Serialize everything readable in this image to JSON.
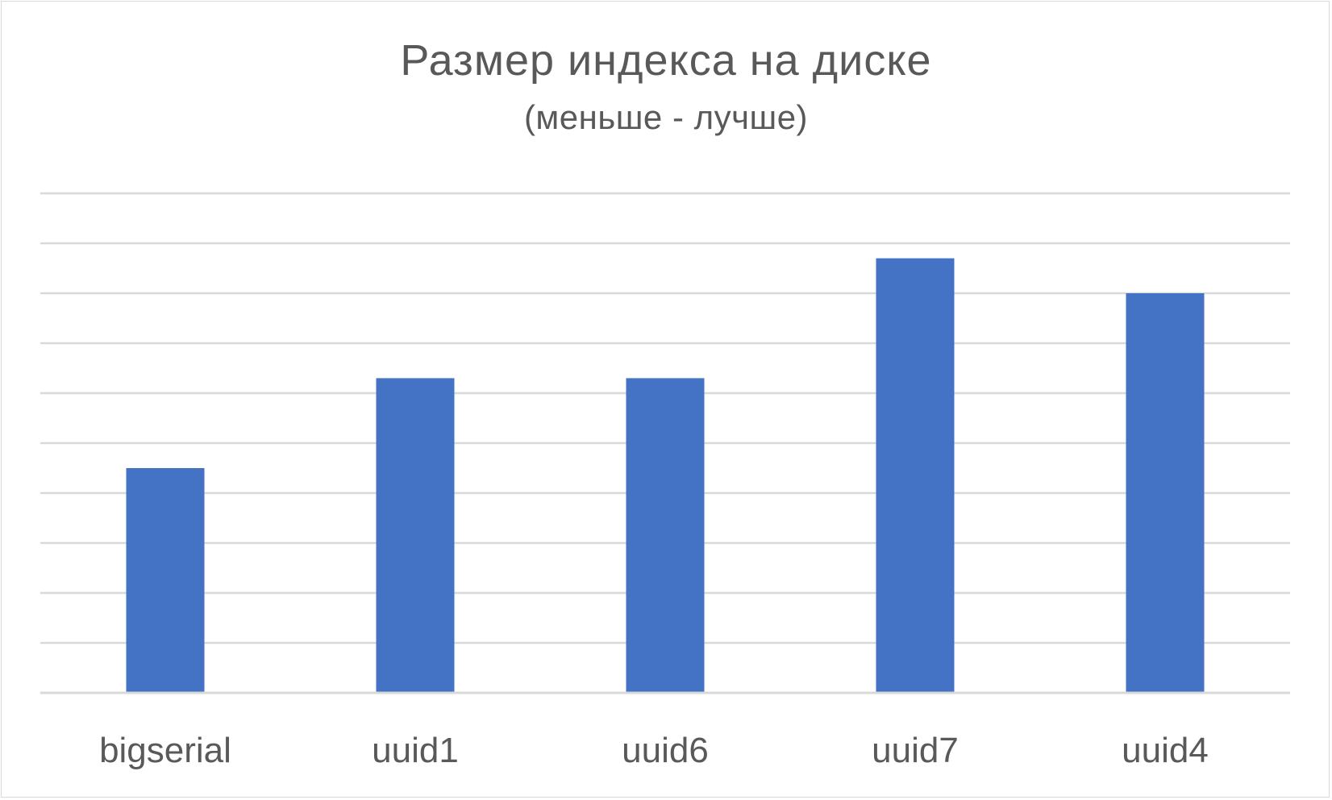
{
  "chart_data": {
    "type": "bar",
    "title": "Размер индекса на диске",
    "subtitle": "(меньше - лучше)",
    "xlabel": "",
    "ylabel": "",
    "categories": [
      "bigserial",
      "uuid1",
      "uuid6",
      "uuid7",
      "uuid4"
    ],
    "values": [
      4.5,
      6.3,
      6.3,
      8.7,
      8.0
    ],
    "ylim": [
      0,
      10
    ],
    "gridline_count": 10,
    "y_tick_labels_visible": false,
    "grid": true,
    "legend": "none",
    "bar_color": "#4472c4",
    "gridline_color": "#d9d9d9",
    "text_color": "#595959"
  }
}
